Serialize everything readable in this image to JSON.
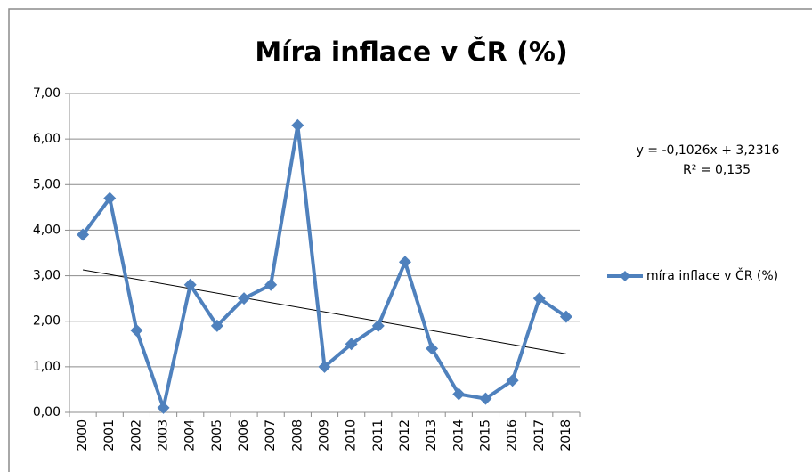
{
  "chart_data": {
    "type": "line",
    "title": "Míra inflace v ČR (%)",
    "categories": [
      "2000",
      "2001",
      "2002",
      "2003",
      "2004",
      "2005",
      "2006",
      "2007",
      "2008",
      "2009",
      "2010",
      "2011",
      "2012",
      "2013",
      "2014",
      "2015",
      "2016",
      "2017",
      "2018"
    ],
    "series": [
      {
        "name": "míra inflace v ČR (%)",
        "color": "#4f81bd",
        "values": [
          3.9,
          4.7,
          1.8,
          0.1,
          2.8,
          1.9,
          2.5,
          2.8,
          6.3,
          1.0,
          1.5,
          1.9,
          3.3,
          1.4,
          0.4,
          0.3,
          0.7,
          2.5,
          2.1
        ]
      }
    ],
    "ylim": [
      0,
      7
    ],
    "yticks": [
      {
        "value": 0,
        "label": "0,00"
      },
      {
        "value": 1,
        "label": "1,00"
      },
      {
        "value": 2,
        "label": "2,00"
      },
      {
        "value": 3,
        "label": "3,00"
      },
      {
        "value": 4,
        "label": "4,00"
      },
      {
        "value": 5,
        "label": "5,00"
      },
      {
        "value": 6,
        "label": "6,00"
      },
      {
        "value": 7,
        "label": "7,00"
      }
    ],
    "grid": true,
    "legend": "right",
    "trendline": {
      "slope": -0.1026,
      "intercept": 3.2316,
      "equation": "y = -0,1026x + 3,2316",
      "r2": "R² = 0,135",
      "color": "#000000"
    }
  }
}
